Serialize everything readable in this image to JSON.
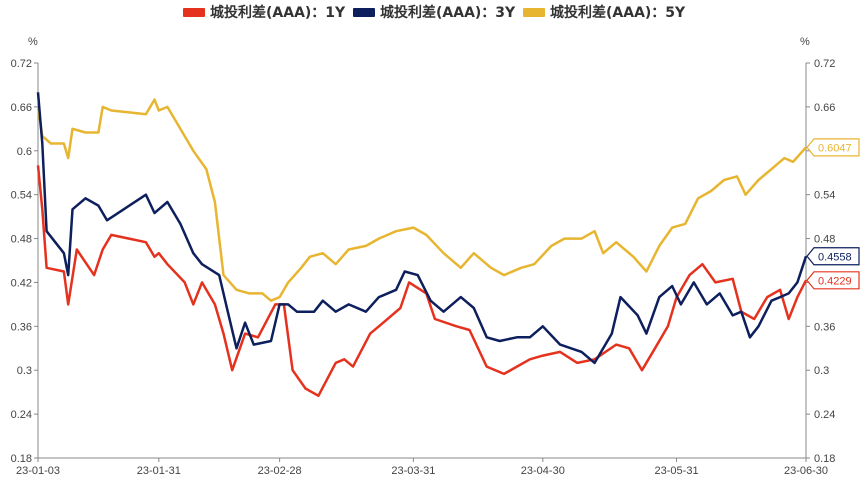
{
  "chart_data": {
    "type": "line",
    "unit_left": "%",
    "unit_right": "%",
    "ylim": [
      0.18,
      0.72
    ],
    "y_ticks": [
      "0.72",
      "0.66",
      "0.6",
      "0.54",
      "0.48",
      "0.42",
      "0.36",
      "0.3",
      "0.24",
      "0.18"
    ],
    "x_range": [
      "2023-01-03",
      "2023-06-30"
    ],
    "x_ticks": [
      "23-01-03",
      "23-01-31",
      "23-02-28",
      "23-03-31",
      "23-04-30",
      "23-05-31",
      "23-06-30"
    ],
    "x_tick_dates": [
      "2023-01-03",
      "2023-01-31",
      "2023-02-28",
      "2023-03-31",
      "2023-04-30",
      "2023-05-31",
      "2023-06-30"
    ],
    "legend_position": "top",
    "grid": false,
    "series": [
      {
        "name": "城投利差(AAA)：1Y",
        "color": "#e5321e",
        "end_label": "0.4229",
        "points": [
          [
            "2023-01-03",
            0.58
          ],
          [
            "2023-01-04",
            0.52
          ],
          [
            "2023-01-05",
            0.44
          ],
          [
            "2023-01-09",
            0.435
          ],
          [
            "2023-01-10",
            0.39
          ],
          [
            "2023-01-12",
            0.465
          ],
          [
            "2023-01-16",
            0.43
          ],
          [
            "2023-01-18",
            0.465
          ],
          [
            "2023-01-20",
            0.485
          ],
          [
            "2023-01-28",
            0.475
          ],
          [
            "2023-01-30",
            0.455
          ],
          [
            "2023-01-31",
            0.46
          ],
          [
            "2023-02-02",
            0.445
          ],
          [
            "2023-02-06",
            0.42
          ],
          [
            "2023-02-08",
            0.39
          ],
          [
            "2023-02-10",
            0.42
          ],
          [
            "2023-02-13",
            0.39
          ],
          [
            "2023-02-15",
            0.35
          ],
          [
            "2023-02-17",
            0.3
          ],
          [
            "2023-02-20",
            0.35
          ],
          [
            "2023-02-23",
            0.345
          ],
          [
            "2023-02-27",
            0.39
          ],
          [
            "2023-03-01",
            0.39
          ],
          [
            "2023-03-03",
            0.3
          ],
          [
            "2023-03-06",
            0.275
          ],
          [
            "2023-03-09",
            0.265
          ],
          [
            "2023-03-13",
            0.31
          ],
          [
            "2023-03-15",
            0.315
          ],
          [
            "2023-03-17",
            0.305
          ],
          [
            "2023-03-21",
            0.35
          ],
          [
            "2023-03-24",
            0.365
          ],
          [
            "2023-03-28",
            0.385
          ],
          [
            "2023-03-30",
            0.42
          ],
          [
            "2023-04-03",
            0.405
          ],
          [
            "2023-04-05",
            0.37
          ],
          [
            "2023-04-10",
            0.36
          ],
          [
            "2023-04-13",
            0.355
          ],
          [
            "2023-04-17",
            0.305
          ],
          [
            "2023-04-21",
            0.295
          ],
          [
            "2023-04-24",
            0.305
          ],
          [
            "2023-04-27",
            0.315
          ],
          [
            "2023-04-30",
            0.32
          ],
          [
            "2023-05-04",
            0.325
          ],
          [
            "2023-05-08",
            0.31
          ],
          [
            "2023-05-12",
            0.315
          ],
          [
            "2023-05-17",
            0.335
          ],
          [
            "2023-05-20",
            0.33
          ],
          [
            "2023-05-23",
            0.3
          ],
          [
            "2023-05-26",
            0.33
          ],
          [
            "2023-05-29",
            0.36
          ],
          [
            "2023-05-31",
            0.4
          ],
          [
            "2023-06-03",
            0.43
          ],
          [
            "2023-06-06",
            0.445
          ],
          [
            "2023-06-09",
            0.42
          ],
          [
            "2023-06-13",
            0.425
          ],
          [
            "2023-06-15",
            0.38
          ],
          [
            "2023-06-18",
            0.37
          ],
          [
            "2023-06-21",
            0.4
          ],
          [
            "2023-06-24",
            0.41
          ],
          [
            "2023-06-26",
            0.37
          ],
          [
            "2023-06-28",
            0.4
          ],
          [
            "2023-06-30",
            0.4229
          ]
        ]
      },
      {
        "name": "城投利差(AAA)：3Y",
        "color": "#0d1f5c",
        "end_label": "0.4558",
        "points": [
          [
            "2023-01-03",
            0.68
          ],
          [
            "2023-01-04",
            0.61
          ],
          [
            "2023-01-05",
            0.49
          ],
          [
            "2023-01-09",
            0.46
          ],
          [
            "2023-01-10",
            0.43
          ],
          [
            "2023-01-11",
            0.52
          ],
          [
            "2023-01-14",
            0.535
          ],
          [
            "2023-01-17",
            0.525
          ],
          [
            "2023-01-19",
            0.505
          ],
          [
            "2023-01-28",
            0.54
          ],
          [
            "2023-01-30",
            0.515
          ],
          [
            "2023-01-31",
            0.52
          ],
          [
            "2023-02-02",
            0.53
          ],
          [
            "2023-02-05",
            0.5
          ],
          [
            "2023-02-08",
            0.46
          ],
          [
            "2023-02-10",
            0.445
          ],
          [
            "2023-02-14",
            0.43
          ],
          [
            "2023-02-16",
            0.38
          ],
          [
            "2023-02-18",
            0.33
          ],
          [
            "2023-02-20",
            0.365
          ],
          [
            "2023-02-22",
            0.335
          ],
          [
            "2023-02-26",
            0.34
          ],
          [
            "2023-02-28",
            0.39
          ],
          [
            "2023-03-02",
            0.39
          ],
          [
            "2023-03-04",
            0.38
          ],
          [
            "2023-03-08",
            0.38
          ],
          [
            "2023-03-10",
            0.395
          ],
          [
            "2023-03-13",
            0.38
          ],
          [
            "2023-03-16",
            0.39
          ],
          [
            "2023-03-20",
            0.38
          ],
          [
            "2023-03-23",
            0.4
          ],
          [
            "2023-03-27",
            0.41
          ],
          [
            "2023-03-29",
            0.435
          ],
          [
            "2023-04-01",
            0.43
          ],
          [
            "2023-04-04",
            0.395
          ],
          [
            "2023-04-07",
            0.38
          ],
          [
            "2023-04-11",
            0.4
          ],
          [
            "2023-04-14",
            0.385
          ],
          [
            "2023-04-17",
            0.345
          ],
          [
            "2023-04-20",
            0.34
          ],
          [
            "2023-04-24",
            0.345
          ],
          [
            "2023-04-27",
            0.345
          ],
          [
            "2023-04-30",
            0.36
          ],
          [
            "2023-05-04",
            0.335
          ],
          [
            "2023-05-09",
            0.325
          ],
          [
            "2023-05-12",
            0.31
          ],
          [
            "2023-05-16",
            0.35
          ],
          [
            "2023-05-18",
            0.4
          ],
          [
            "2023-05-22",
            0.375
          ],
          [
            "2023-05-24",
            0.35
          ],
          [
            "2023-05-27",
            0.4
          ],
          [
            "2023-05-30",
            0.415
          ],
          [
            "2023-06-01",
            0.39
          ],
          [
            "2023-06-04",
            0.42
          ],
          [
            "2023-06-07",
            0.39
          ],
          [
            "2023-06-10",
            0.405
          ],
          [
            "2023-06-13",
            0.375
          ],
          [
            "2023-06-15",
            0.38
          ],
          [
            "2023-06-17",
            0.345
          ],
          [
            "2023-06-19",
            0.36
          ],
          [
            "2023-06-22",
            0.395
          ],
          [
            "2023-06-24",
            0.4
          ],
          [
            "2023-06-26",
            0.405
          ],
          [
            "2023-06-28",
            0.42
          ],
          [
            "2023-06-30",
            0.4558
          ]
        ]
      },
      {
        "name": "城投利差(AAA)：5Y",
        "color": "#e8b530",
        "end_label": "0.6047",
        "points": [
          [
            "2023-01-03",
            0.66
          ],
          [
            "2023-01-04",
            0.62
          ],
          [
            "2023-01-06",
            0.61
          ],
          [
            "2023-01-09",
            0.61
          ],
          [
            "2023-01-10",
            0.59
          ],
          [
            "2023-01-11",
            0.63
          ],
          [
            "2023-01-14",
            0.625
          ],
          [
            "2023-01-17",
            0.625
          ],
          [
            "2023-01-18",
            0.66
          ],
          [
            "2023-01-20",
            0.655
          ],
          [
            "2023-01-28",
            0.65
          ],
          [
            "2023-01-30",
            0.67
          ],
          [
            "2023-01-31",
            0.655
          ],
          [
            "2023-02-02",
            0.66
          ],
          [
            "2023-02-06",
            0.62
          ],
          [
            "2023-02-08",
            0.6
          ],
          [
            "2023-02-11",
            0.575
          ],
          [
            "2023-02-13",
            0.53
          ],
          [
            "2023-02-15",
            0.43
          ],
          [
            "2023-02-18",
            0.41
          ],
          [
            "2023-02-21",
            0.405
          ],
          [
            "2023-02-24",
            0.405
          ],
          [
            "2023-02-26",
            0.395
          ],
          [
            "2023-02-28",
            0.4
          ],
          [
            "2023-03-02",
            0.42
          ],
          [
            "2023-03-05",
            0.44
          ],
          [
            "2023-03-07",
            0.455
          ],
          [
            "2023-03-10",
            0.46
          ],
          [
            "2023-03-13",
            0.445
          ],
          [
            "2023-03-16",
            0.465
          ],
          [
            "2023-03-20",
            0.47
          ],
          [
            "2023-03-23",
            0.48
          ],
          [
            "2023-03-27",
            0.49
          ],
          [
            "2023-03-31",
            0.495
          ],
          [
            "2023-04-03",
            0.485
          ],
          [
            "2023-04-07",
            0.46
          ],
          [
            "2023-04-11",
            0.44
          ],
          [
            "2023-04-14",
            0.46
          ],
          [
            "2023-04-18",
            0.44
          ],
          [
            "2023-04-21",
            0.43
          ],
          [
            "2023-04-25",
            0.44
          ],
          [
            "2023-04-28",
            0.445
          ],
          [
            "2023-05-02",
            0.47
          ],
          [
            "2023-05-05",
            0.48
          ],
          [
            "2023-05-09",
            0.48
          ],
          [
            "2023-05-12",
            0.49
          ],
          [
            "2023-05-14",
            0.46
          ],
          [
            "2023-05-17",
            0.475
          ],
          [
            "2023-05-21",
            0.455
          ],
          [
            "2023-05-24",
            0.435
          ],
          [
            "2023-05-27",
            0.47
          ],
          [
            "2023-05-30",
            0.495
          ],
          [
            "2023-06-02",
            0.5
          ],
          [
            "2023-06-05",
            0.535
          ],
          [
            "2023-06-08",
            0.545
          ],
          [
            "2023-06-11",
            0.56
          ],
          [
            "2023-06-14",
            0.565
          ],
          [
            "2023-06-16",
            0.54
          ],
          [
            "2023-06-19",
            0.56
          ],
          [
            "2023-06-22",
            0.575
          ],
          [
            "2023-06-25",
            0.59
          ],
          [
            "2023-06-27",
            0.585
          ],
          [
            "2023-06-30",
            0.6047
          ]
        ]
      }
    ]
  }
}
